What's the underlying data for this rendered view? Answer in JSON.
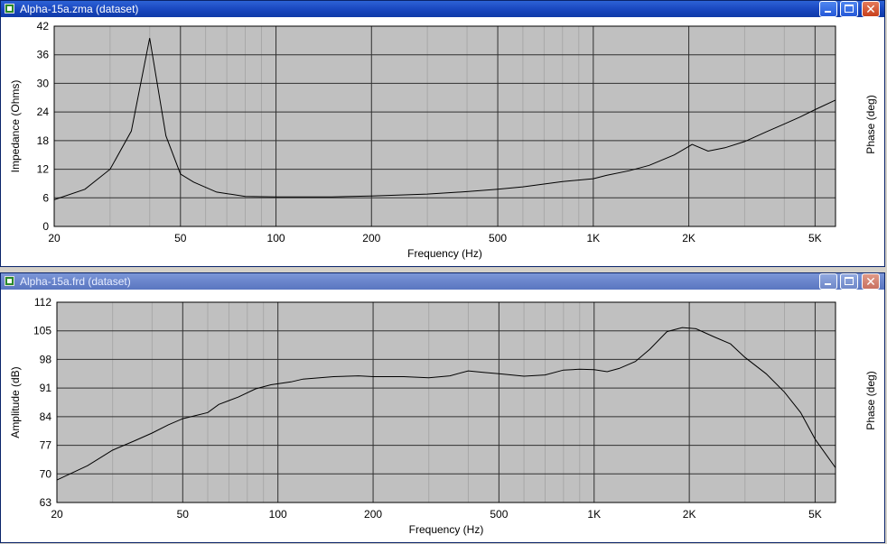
{
  "windows": [
    {
      "title": "Alpha-15a.zma (dataset)",
      "buttons": {
        "minimize": "minimize",
        "maximize": "maximize",
        "close": "✕"
      }
    },
    {
      "title": "Alpha-15a.frd (dataset)",
      "buttons": {
        "minimize": "minimize",
        "maximize": "maximize",
        "close": "✕"
      }
    }
  ],
  "chart_data": [
    {
      "type": "line",
      "title": "",
      "xlabel": "Frequency (Hz)",
      "ylabel": "Impedance (Ohms)",
      "ylabel_right": "Phase (deg)",
      "xscale": "log",
      "xlim": [
        20,
        5800
      ],
      "ylim": [
        0,
        42
      ],
      "x_ticks": [
        20,
        50,
        100,
        200,
        500,
        1000,
        2000,
        5000
      ],
      "x_tick_labels": [
        "20",
        "50",
        "100",
        "200",
        "500",
        "1K",
        "2K",
        "5K"
      ],
      "y_ticks": [
        0,
        6,
        12,
        18,
        24,
        30,
        36,
        42
      ],
      "y_tick_labels": [
        "0",
        "6",
        "12",
        "18",
        "24",
        "30",
        "36",
        "42"
      ],
      "grid": true,
      "line_color": "#000000",
      "plot_bg": "#c0c0c0",
      "series": [
        {
          "name": "",
          "points": [
            [
              20,
              5.6
            ],
            [
              25,
              7.8
            ],
            [
              30,
              12
            ],
            [
              35,
              20
            ],
            [
              40,
              39.5
            ],
            [
              45,
              19
            ],
            [
              50,
              11
            ],
            [
              55,
              9.3
            ],
            [
              65,
              7.2
            ],
            [
              80,
              6.3
            ],
            [
              100,
              6.2
            ],
            [
              150,
              6.2
            ],
            [
              200,
              6.4
            ],
            [
              300,
              6.8
            ],
            [
              400,
              7.3
            ],
            [
              500,
              7.8
            ],
            [
              600,
              8.3
            ],
            [
              800,
              9.4
            ],
            [
              1000,
              10
            ],
            [
              1100,
              10.7
            ],
            [
              1300,
              11.7
            ],
            [
              1500,
              12.8
            ],
            [
              1800,
              15
            ],
            [
              2050,
              17.2
            ],
            [
              2300,
              15.8
            ],
            [
              2600,
              16.5
            ],
            [
              3000,
              17.8
            ],
            [
              3500,
              19.8
            ],
            [
              4000,
              21.5
            ],
            [
              4500,
              23
            ],
            [
              5000,
              24.5
            ],
            [
              5800,
              26.5
            ]
          ]
        }
      ]
    },
    {
      "type": "line",
      "title": "",
      "xlabel": "Frequency (Hz)",
      "ylabel": "Amplitude (dB)",
      "ylabel_right": "Phase (deg)",
      "xscale": "log",
      "xlim": [
        20,
        5800
      ],
      "ylim": [
        63,
        112
      ],
      "x_ticks": [
        20,
        50,
        100,
        200,
        500,
        1000,
        2000,
        5000
      ],
      "x_tick_labels": [
        "20",
        "50",
        "100",
        "200",
        "500",
        "1K",
        "2K",
        "5K"
      ],
      "y_ticks": [
        63,
        70,
        77,
        84,
        91,
        98,
        105,
        112
      ],
      "y_tick_labels": [
        "63",
        "70",
        "77",
        "84",
        "91",
        "98",
        "105",
        "112"
      ],
      "grid": true,
      "line_color": "#000000",
      "plot_bg": "#c0c0c0",
      "series": [
        {
          "name": "",
          "points": [
            [
              20,
              68.5
            ],
            [
              25,
              72
            ],
            [
              30,
              75.8
            ],
            [
              35,
              78
            ],
            [
              40,
              80
            ],
            [
              45,
              82
            ],
            [
              50,
              83.5
            ],
            [
              60,
              85
            ],
            [
              65,
              87
            ],
            [
              75,
              88.8
            ],
            [
              85,
              90.8
            ],
            [
              95,
              91.8
            ],
            [
              110,
              92.5
            ],
            [
              120,
              93.2
            ],
            [
              150,
              93.8
            ],
            [
              180,
              94
            ],
            [
              200,
              93.8
            ],
            [
              250,
              93.8
            ],
            [
              300,
              93.5
            ],
            [
              350,
              94
            ],
            [
              400,
              95.2
            ],
            [
              450,
              94.8
            ],
            [
              500,
              94.5
            ],
            [
              600,
              93.9
            ],
            [
              700,
              94.2
            ],
            [
              800,
              95.4
            ],
            [
              900,
              95.6
            ],
            [
              1000,
              95.5
            ],
            [
              1100,
              95
            ],
            [
              1200,
              95.8
            ],
            [
              1350,
              97.5
            ],
            [
              1500,
              100.5
            ],
            [
              1700,
              104.8
            ],
            [
              1900,
              105.8
            ],
            [
              2100,
              105.5
            ],
            [
              2400,
              103.5
            ],
            [
              2700,
              101.8
            ],
            [
              3000,
              98.5
            ],
            [
              3500,
              94.5
            ],
            [
              4000,
              90
            ],
            [
              4500,
              85
            ],
            [
              5000,
              78.5
            ],
            [
              5800,
              71.5
            ]
          ]
        }
      ]
    }
  ]
}
